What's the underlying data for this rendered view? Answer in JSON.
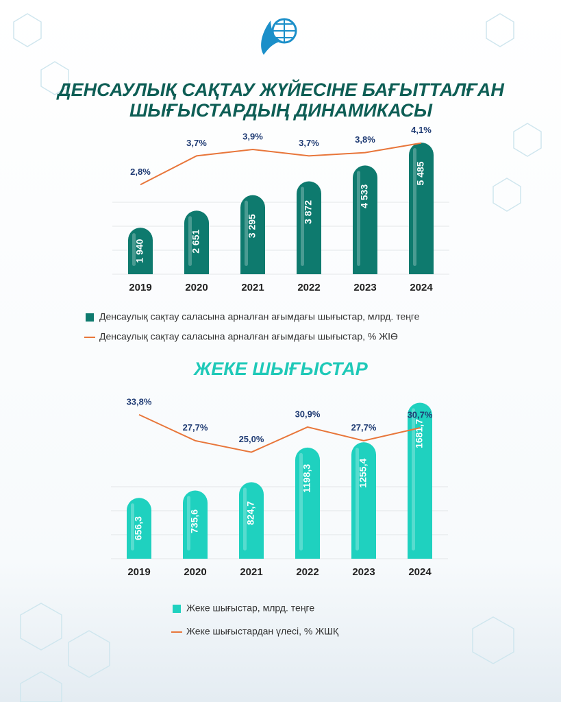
{
  "chart_data": [
    {
      "type": "bar",
      "title": [
        "ДЕНСАУЛЫҚ САҚТАУ ЖҮЙЕСІНЕ БАҒЫТТАЛҒАН",
        "ШЫҒЫСТАРДЫҢ ДИНАМИКАСЫ"
      ],
      "categories": [
        "2019",
        "2020",
        "2021",
        "2022",
        "2023",
        "2024"
      ],
      "ylim": [
        0,
        6000
      ],
      "y2lim": [
        0,
        4.5
      ],
      "series": [
        {
          "name": "Денсаулық сақтау саласына арналған ағымдағы шығыстар, млрд. теңге",
          "type": "bar",
          "color": "#0e7a6e",
          "values": [
            1940,
            2651,
            3295,
            3872,
            4533,
            5485
          ],
          "value_labels": [
            "1 940",
            "2 651",
            "3 295",
            "3 872",
            "4 533",
            "5 485"
          ]
        },
        {
          "name": "Денсаулық сақтау саласына арналған ағымдағы шығыстар, % ЖІӨ",
          "type": "line",
          "axis": "y2",
          "color": "#e8763a",
          "values": [
            2.8,
            3.7,
            3.9,
            3.7,
            3.8,
            4.1
          ],
          "value_labels": [
            "2,8%",
            "3,7%",
            "3,9%",
            "3,7%",
            "3,8%",
            "4,1%"
          ]
        }
      ]
    },
    {
      "type": "bar",
      "title": [
        "ЖЕКЕ ШЫҒЫСТАР"
      ],
      "categories": [
        "2019",
        "2020",
        "2021",
        "2022",
        "2023",
        "2024"
      ],
      "ylim": [
        0,
        1700
      ],
      "y2lim": [
        0,
        37
      ],
      "series": [
        {
          "name": "Жеке шығыстар, млрд. теңге",
          "type": "bar",
          "color": "#1fd1bf",
          "values": [
            656.3,
            735.6,
            824.7,
            1198.3,
            1255.4,
            1681.7
          ],
          "value_labels": [
            "656,3",
            "735,6",
            "824,7",
            "1198,3",
            "1255,4",
            "1681,7"
          ]
        },
        {
          "name": "Жеке шығыстардан үлесі, % ЖШҚ",
          "type": "line",
          "axis": "y2",
          "color": "#e8763a",
          "values": [
            33.8,
            27.7,
            25.0,
            30.9,
            27.7,
            30.7
          ],
          "value_labels": [
            "33,8%",
            "27,7%",
            "25,0%",
            "30,9%",
            "27,7%",
            "30,7%"
          ]
        }
      ]
    }
  ]
}
